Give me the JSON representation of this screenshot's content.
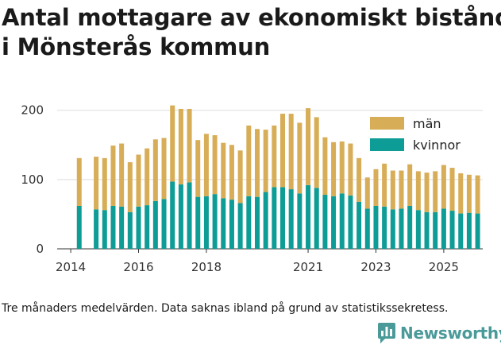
{
  "title_lines": [
    "Antal mottagare av ekonomiskt bistånd",
    "i Mönsterås kommun"
  ],
  "footnote": "Tre månaders medelvärden. Data saknas ibland på grund av statistikssekretess.",
  "brand": {
    "name": "Newsworthy",
    "icon": "bar-chart-logo-icon",
    "color": "#4a9a9a"
  },
  "chart_data": {
    "type": "bar",
    "stacked": true,
    "title": "Antal mottagare av ekonomiskt bistånd i Mönsterås kommun",
    "xlabel": "",
    "ylabel": "",
    "ylim": [
      0,
      210
    ],
    "y_ticks": [
      0,
      100,
      200
    ],
    "grid": true,
    "legend_position": "top-right",
    "x_range": [
      2013.6,
      2026.15
    ],
    "x_ticks": [
      2014,
      2016,
      2018,
      2021,
      2023,
      2025
    ],
    "x": [
      2014.25,
      2014.75,
      2015.0,
      2015.25,
      2015.5,
      2015.75,
      2016.0,
      2016.25,
      2016.5,
      2016.75,
      2017.0,
      2017.25,
      2017.5,
      2017.75,
      2018.0,
      2018.25,
      2018.5,
      2018.75,
      2019.0,
      2019.25,
      2019.5,
      2019.75,
      2020.0,
      2020.25,
      2020.5,
      2020.75,
      2021.0,
      2021.25,
      2021.5,
      2021.75,
      2022.0,
      2022.25,
      2022.5,
      2022.75,
      2023.0,
      2023.25,
      2023.5,
      2023.75,
      2024.0,
      2024.25,
      2024.5,
      2024.75,
      2025.0,
      2025.25,
      2025.5,
      2025.75,
      2026.0
    ],
    "series": [
      {
        "name": "kvinnor",
        "color": "#0d9c96",
        "values": [
          62,
          57,
          56,
          62,
          61,
          53,
          61,
          63,
          69,
          72,
          97,
          93,
          96,
          75,
          76,
          79,
          73,
          71,
          66,
          76,
          75,
          82,
          89,
          89,
          86,
          80,
          92,
          88,
          78,
          76,
          80,
          77,
          68,
          58,
          62,
          61,
          57,
          58,
          62,
          56,
          53,
          53,
          58,
          55,
          51,
          52,
          51
        ]
      },
      {
        "name": "män",
        "color": "#d8ad57",
        "values": [
          69,
          76,
          75,
          87,
          91,
          72,
          75,
          82,
          89,
          88,
          110,
          109,
          106,
          82,
          90,
          85,
          80,
          79,
          76,
          102,
          98,
          90,
          89,
          106,
          109,
          102,
          111,
          102,
          83,
          78,
          75,
          75,
          63,
          45,
          53,
          62,
          56,
          55,
          60,
          56,
          57,
          59,
          63,
          62,
          58,
          55,
          55
        ]
      }
    ]
  }
}
